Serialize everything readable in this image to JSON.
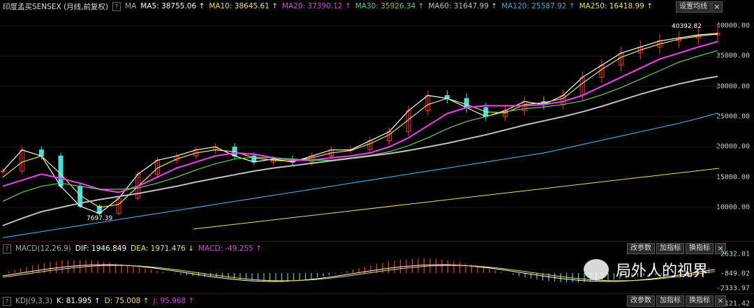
{
  "main_header": {
    "title": "印度孟买SENSEX (月线,前复权)",
    "ma_label": "MA",
    "ma": [
      {
        "label": "MA5: 38755.06",
        "color": "#ffffff"
      },
      {
        "label": "MA10: 38645.61",
        "color": "#f0e060"
      },
      {
        "label": "MA20: 37390.12",
        "color": "#e040e0"
      },
      {
        "label": "MA30: 35926.34",
        "color": "#60d060"
      },
      {
        "label": "MA60: 31647.99",
        "color": "#c0c0c0"
      },
      {
        "label": "MA120: 25587.92",
        "color": "#40a8d8"
      },
      {
        "label": "MA250: 16418.99",
        "color": "#f0e060"
      }
    ],
    "settings_button": "设置均线",
    "close": "×"
  },
  "main_annotations": {
    "high": "40392.82",
    "low": "7697.39"
  },
  "macd_header": {
    "name": "MACD(12,26,9)",
    "dif": "DIF: 1946.849",
    "dea": "DEA: 1971.476 ↓",
    "macd": "MACD: -49.255 ↑"
  },
  "kdj_header": {
    "name": "KDJ(9,3,3)",
    "k": "K: 81.995 ↑",
    "d": "D: 75.008 ↑",
    "j": "J: 95.968 ↑"
  },
  "panel_buttons": {
    "change": "改参数",
    "add": "加指标",
    "swap": "换指标",
    "close": "×"
  },
  "y_labels_main": [
    "40000.00",
    "35000.00",
    "30000.00",
    "25000.00",
    "20000.00",
    "15000.00",
    "10000.00"
  ],
  "y_labels_macd": [
    "2632.01",
    "-849.02",
    "-2333.97"
  ],
  "y_label_kdj": "121.42",
  "watermark": "局外人的视界",
  "chart_data": {
    "type": "line",
    "title": "印度孟买SENSEX (月线,前复权)",
    "x_label": "",
    "y_label": "",
    "ylim": [
      5000,
      42000
    ],
    "series": [
      {
        "name": "MA5",
        "color": "#ffffff",
        "values": [
          16000,
          19500,
          18500,
          13500,
          10200,
          9000,
          11500,
          15500,
          17800,
          18500,
          19500,
          20000,
          18500,
          17500,
          18000,
          17500,
          18500,
          19500,
          19500,
          21000,
          22500,
          26000,
          28500,
          28000,
          26500,
          25000,
          26000,
          27500,
          27000,
          28500,
          31500,
          33500,
          35500,
          36500,
          37500,
          38000,
          38500,
          38755
        ]
      },
      {
        "name": "MA10",
        "color": "#f0e060",
        "values": [
          15000,
          17500,
          18500,
          15500,
          12000,
          10000,
          10500,
          13500,
          16500,
          18000,
          19000,
          19500,
          19200,
          18200,
          17800,
          17600,
          18200,
          19000,
          19400,
          20500,
          22000,
          24500,
          27000,
          28000,
          27000,
          25800,
          25600,
          27000,
          27300,
          28000,
          30500,
          32800,
          34800,
          36000,
          37000,
          37800,
          38300,
          38645
        ]
      },
      {
        "name": "MA20",
        "color": "#e040e0",
        "values": [
          13500,
          14500,
          15500,
          14800,
          14000,
          13000,
          12500,
          13500,
          15000,
          16500,
          17500,
          18500,
          19000,
          18800,
          18200,
          17800,
          17800,
          18200,
          18500,
          19000,
          20000,
          21500,
          23500,
          25500,
          26500,
          26800,
          26800,
          26800,
          27000,
          27500,
          28500,
          30000,
          31500,
          33000,
          34500,
          35500,
          36500,
          37390
        ]
      },
      {
        "name": "MA30",
        "color": "#60d060",
        "values": [
          11000,
          12500,
          13500,
          14000,
          13500,
          13000,
          13000,
          13200,
          14000,
          15000,
          16200,
          17200,
          18000,
          18300,
          18200,
          18000,
          17800,
          17800,
          18200,
          18600,
          19200,
          20200,
          21500,
          23000,
          24200,
          25000,
          25800,
          26300,
          26600,
          27000,
          27600,
          28600,
          29800,
          31200,
          32600,
          34000,
          35000,
          35926
        ]
      },
      {
        "name": "MA60",
        "color": "#c0c0c0",
        "values": [
          7000,
          8200,
          9300,
          10000,
          10700,
          11300,
          11800,
          12300,
          12900,
          13500,
          14200,
          14800,
          15400,
          16000,
          16500,
          16900,
          17300,
          17700,
          18100,
          18500,
          18900,
          19400,
          20000,
          20600,
          21300,
          22000,
          22800,
          23600,
          24300,
          25000,
          25800,
          26700,
          27700,
          28700,
          29600,
          30400,
          31100,
          31648
        ]
      },
      {
        "name": "MA120",
        "color": "#40a8d8",
        "values": [
          5000,
          5500,
          6000,
          6500,
          7000,
          7500,
          8000,
          8500,
          9000,
          9500,
          10000,
          10500,
          11000,
          11500,
          12000,
          12500,
          13000,
          13500,
          14000,
          14500,
          15000,
          15500,
          16000,
          16500,
          17000,
          17500,
          18000,
          18500,
          19000,
          19700,
          20400,
          21100,
          21800,
          22500,
          23200,
          23900,
          24700,
          25588
        ]
      }
    ]
  }
}
